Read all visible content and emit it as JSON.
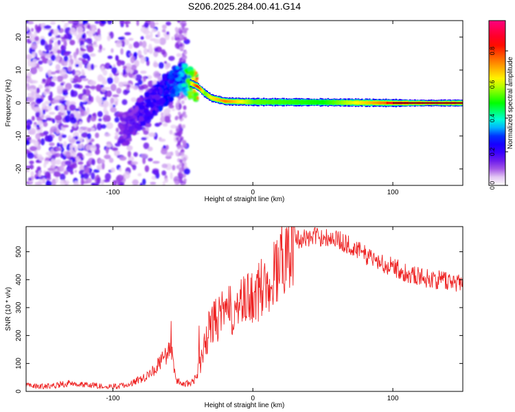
{
  "title": "S206.2025.284.00.41.G14",
  "chart_data": [
    {
      "type": "heatmap",
      "panel": "spectrogram",
      "xlabel": "Height of straight line (km)",
      "ylabel": "Frequency (Hz)",
      "xlim": [
        -162,
        150
      ],
      "ylim": [
        -25,
        25
      ],
      "xticks": [
        -100,
        0,
        100
      ],
      "yticks": [
        -20,
        -10,
        0,
        10,
        20
      ],
      "ridge": {
        "x": [
          -90,
          -80,
          -70,
          -60,
          -50,
          -45,
          -40,
          -35,
          -30,
          -20,
          0,
          50,
          100,
          150
        ],
        "freq": [
          -8,
          -3,
          1,
          5,
          8,
          6,
          5,
          3,
          1.5,
          0.5,
          0.3,
          0.2,
          0,
          0
        ],
        "amplitude": [
          0.15,
          0.2,
          0.25,
          0.3,
          0.35,
          0.55,
          0.8,
          0.5,
          0.6,
          0.7,
          0.5,
          0.45,
          0.75,
          0.9
        ]
      },
      "colorbar": {
        "label": "Normalized spectral amplitude",
        "range": [
          0,
          0.98
        ],
        "ticks": [
          0.0,
          0.2,
          0.4,
          0.6,
          0.8
        ],
        "tick_labels": [
          "0.0",
          "0.2",
          "0.4",
          "0.6",
          "0.8"
        ],
        "colors": [
          "#ffffff",
          "#e4c8f4",
          "#8a2be2",
          "#3a00ff",
          "#0000ff",
          "#00ffff",
          "#00ff00",
          "#ffff00",
          "#ff8000",
          "#ff0000",
          "#ff0080"
        ]
      }
    },
    {
      "type": "line",
      "panel": "snr",
      "xlabel": "Height of straight line (km)",
      "ylabel": "SNR (10 * v/v)",
      "xlim": [
        -162,
        150
      ],
      "ylim": [
        0,
        590
      ],
      "xticks": [
        -100,
        0,
        100
      ],
      "yticks": [
        0,
        100,
        200,
        300,
        400,
        500
      ],
      "color": "#ee2222",
      "series": [
        {
          "name": "SNR",
          "x": [
            -162,
            -150,
            -140,
            -130,
            -120,
            -110,
            -100,
            -90,
            -80,
            -75,
            -70,
            -65,
            -62,
            -58,
            -55,
            -50,
            -45,
            -40,
            -35,
            -30,
            -25,
            -20,
            -15,
            -10,
            -5,
            0,
            5,
            10,
            15,
            20,
            25,
            30,
            40,
            50,
            60,
            70,
            80,
            90,
            100,
            110,
            120,
            130,
            140,
            150
          ],
          "y": [
            20,
            18,
            22,
            30,
            25,
            20,
            18,
            22,
            45,
            60,
            80,
            110,
            130,
            150,
            40,
            25,
            30,
            50,
            150,
            240,
            260,
            280,
            290,
            300,
            320,
            340,
            360,
            390,
            420,
            470,
            520,
            545,
            550,
            555,
            545,
            520,
            490,
            465,
            445,
            425,
            410,
            400,
            395,
            390
          ]
        }
      ]
    }
  ]
}
